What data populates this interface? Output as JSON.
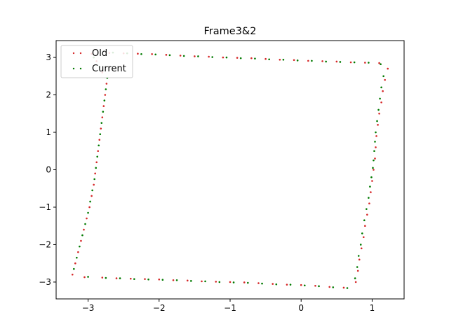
{
  "chart_data": {
    "type": "scatter",
    "title": "Frame3&2",
    "xlabel": "",
    "ylabel": "",
    "xlim": [
      -3.45,
      1.45
    ],
    "ylim": [
      -3.45,
      3.45
    ],
    "xticks": [
      -3,
      -2,
      -1,
      0,
      1
    ],
    "xtick_labels": [
      "−3",
      "−2",
      "−1",
      "0",
      "1"
    ],
    "yticks": [
      -3,
      -2,
      -1,
      0,
      1,
      2,
      3
    ],
    "ytick_labels": [
      "−3",
      "−2",
      "−1",
      "0",
      "1",
      "2",
      "3"
    ],
    "grid": false,
    "legend": "upper-left",
    "series": [
      {
        "name": "Old",
        "color": "#d62728",
        "points": [
          [
            -2.7,
            3.12
          ],
          [
            -2.5,
            3.11
          ],
          [
            -2.3,
            3.1
          ],
          [
            -2.1,
            3.09
          ],
          [
            -1.9,
            3.07
          ],
          [
            -1.7,
            3.05
          ],
          [
            -1.5,
            3.03
          ],
          [
            -1.3,
            3.02
          ],
          [
            -1.1,
            3.0
          ],
          [
            -0.9,
            2.99
          ],
          [
            -0.7,
            2.98
          ],
          [
            -0.5,
            2.96
          ],
          [
            -0.3,
            2.94
          ],
          [
            -0.1,
            2.93
          ],
          [
            0.1,
            2.91
          ],
          [
            0.3,
            2.9
          ],
          [
            0.5,
            2.89
          ],
          [
            0.7,
            2.87
          ],
          [
            0.9,
            2.86
          ],
          [
            1.1,
            2.85
          ],
          [
            1.22,
            2.7
          ],
          [
            1.18,
            2.4
          ],
          [
            1.15,
            2.1
          ],
          [
            1.13,
            1.8
          ],
          [
            1.1,
            1.5
          ],
          [
            1.08,
            1.2
          ],
          [
            1.06,
            0.9
          ],
          [
            1.05,
            0.6
          ],
          [
            1.04,
            0.3
          ],
          [
            1.02,
            0.0
          ],
          [
            1.0,
            -0.3
          ],
          [
            0.98,
            -0.6
          ],
          [
            0.96,
            -0.9
          ],
          [
            0.93,
            -1.2
          ],
          [
            0.9,
            -1.5
          ],
          [
            0.88,
            -1.8
          ],
          [
            0.85,
            -2.1
          ],
          [
            0.82,
            -2.4
          ],
          [
            0.8,
            -2.7
          ],
          [
            0.77,
            -3.0
          ],
          [
            0.6,
            -3.15
          ],
          [
            0.4,
            -3.13
          ],
          [
            0.2,
            -3.1
          ],
          [
            0.0,
            -3.08
          ],
          [
            -0.2,
            -3.07
          ],
          [
            -0.4,
            -3.05
          ],
          [
            -0.6,
            -3.03
          ],
          [
            -0.8,
            -3.01
          ],
          [
            -1.0,
            -3.0
          ],
          [
            -1.2,
            -2.99
          ],
          [
            -1.4,
            -2.98
          ],
          [
            -1.6,
            -2.96
          ],
          [
            -1.8,
            -2.95
          ],
          [
            -2.0,
            -2.93
          ],
          [
            -2.2,
            -2.92
          ],
          [
            -2.4,
            -2.91
          ],
          [
            -2.6,
            -2.9
          ],
          [
            -2.8,
            -2.88
          ],
          [
            -3.05,
            -2.87
          ],
          [
            -3.22,
            -2.8
          ],
          [
            -3.18,
            -2.5
          ],
          [
            -3.14,
            -2.2
          ],
          [
            -3.1,
            -1.9
          ],
          [
            -3.06,
            -1.6
          ],
          [
            -3.02,
            -1.3
          ],
          [
            -2.98,
            -1.0
          ],
          [
            -2.95,
            -0.7
          ],
          [
            -2.92,
            -0.4
          ],
          [
            -2.9,
            -0.1
          ],
          [
            -2.88,
            0.2
          ],
          [
            -2.86,
            0.5
          ],
          [
            -2.84,
            0.8
          ],
          [
            -2.82,
            1.1
          ],
          [
            -2.8,
            1.4
          ],
          [
            -2.78,
            1.7
          ],
          [
            -2.76,
            2.0
          ],
          [
            -2.74,
            2.3
          ],
          [
            -2.8,
            2.6
          ],
          [
            -2.88,
            2.9
          ],
          [
            -2.95,
            3.1
          ]
        ]
      },
      {
        "name": "Current",
        "color": "#007a00",
        "points": [
          [
            -2.65,
            3.13
          ],
          [
            -2.45,
            3.11
          ],
          [
            -2.25,
            3.09
          ],
          [
            -2.05,
            3.08
          ],
          [
            -1.85,
            3.06
          ],
          [
            -1.65,
            3.04
          ],
          [
            -1.45,
            3.03
          ],
          [
            -1.25,
            3.01
          ],
          [
            -1.05,
            3.0
          ],
          [
            -0.85,
            2.98
          ],
          [
            -0.65,
            2.97
          ],
          [
            -0.45,
            2.95
          ],
          [
            -0.25,
            2.94
          ],
          [
            -0.05,
            2.92
          ],
          [
            0.15,
            2.91
          ],
          [
            0.35,
            2.89
          ],
          [
            0.55,
            2.88
          ],
          [
            0.75,
            2.87
          ],
          [
            0.95,
            2.86
          ],
          [
            1.12,
            2.82
          ],
          [
            1.16,
            2.5
          ],
          [
            1.13,
            2.2
          ],
          [
            1.11,
            1.9
          ],
          [
            1.09,
            1.6
          ],
          [
            1.07,
            1.3
          ],
          [
            1.05,
            1.0
          ],
          [
            1.04,
            0.75
          ],
          [
            1.03,
            0.5
          ],
          [
            1.02,
            0.25
          ],
          [
            1.01,
            0.05
          ],
          [
            0.99,
            -0.2
          ],
          [
            0.97,
            -0.45
          ],
          [
            0.95,
            -0.75
          ],
          [
            0.92,
            -1.05
          ],
          [
            0.89,
            -1.35
          ],
          [
            0.86,
            -1.7
          ],
          [
            0.84,
            -2.0
          ],
          [
            0.81,
            -2.3
          ],
          [
            0.79,
            -2.6
          ],
          [
            0.76,
            -2.9
          ],
          [
            0.65,
            -3.16
          ],
          [
            0.45,
            -3.14
          ],
          [
            0.25,
            -3.11
          ],
          [
            0.05,
            -3.09
          ],
          [
            -0.15,
            -3.07
          ],
          [
            -0.35,
            -3.06
          ],
          [
            -0.55,
            -3.04
          ],
          [
            -0.75,
            -3.02
          ],
          [
            -0.95,
            -3.01
          ],
          [
            -1.15,
            -3.0
          ],
          [
            -1.35,
            -2.98
          ],
          [
            -1.55,
            -2.97
          ],
          [
            -1.75,
            -2.95
          ],
          [
            -1.95,
            -2.94
          ],
          [
            -2.15,
            -2.93
          ],
          [
            -2.35,
            -2.92
          ],
          [
            -2.55,
            -2.9
          ],
          [
            -2.75,
            -2.89
          ],
          [
            -3.0,
            -2.86
          ],
          [
            -3.2,
            -2.65
          ],
          [
            -3.16,
            -2.35
          ],
          [
            -3.12,
            -2.05
          ],
          [
            -3.08,
            -1.75
          ],
          [
            -3.04,
            -1.45
          ],
          [
            -3.0,
            -1.15
          ],
          [
            -2.97,
            -0.85
          ],
          [
            -2.94,
            -0.55
          ],
          [
            -2.91,
            -0.25
          ],
          [
            -2.89,
            0.05
          ],
          [
            -2.87,
            0.35
          ],
          [
            -2.85,
            0.65
          ],
          [
            -2.83,
            0.95
          ],
          [
            -2.81,
            1.25
          ],
          [
            -2.79,
            1.55
          ],
          [
            -2.77,
            1.85
          ],
          [
            -2.75,
            2.15
          ],
          [
            -2.73,
            2.45
          ],
          [
            -2.84,
            2.75
          ],
          [
            -2.92,
            3.0
          ]
        ]
      }
    ]
  }
}
